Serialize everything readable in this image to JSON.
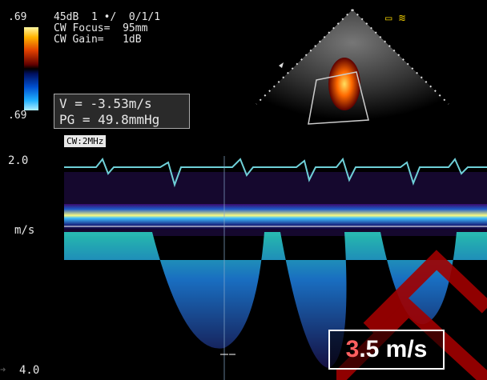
{
  "header": {
    "top_value": ".69",
    "line1": "45dB  1 •/  0/1/1",
    "line2": "CW Focus=  95mm",
    "line3": "CW Gain=   1dB",
    "bottom_value": ".69"
  },
  "readout": {
    "velocity": "V = -3.53m/s",
    "gradient": "PG = 49.8mmHg"
  },
  "mode_tag": "CW:2MHz",
  "scale": {
    "top": "2.0",
    "unit": "m/s",
    "bottom": "4.0"
  },
  "annotation": {
    "highlight": "3",
    "rest": ".5 m/s"
  },
  "icons": [
    "probe-icon",
    "wave-icon"
  ],
  "colors": {
    "background": "#000000",
    "trace": "#6fd0d8",
    "watermark": "#a00000"
  }
}
